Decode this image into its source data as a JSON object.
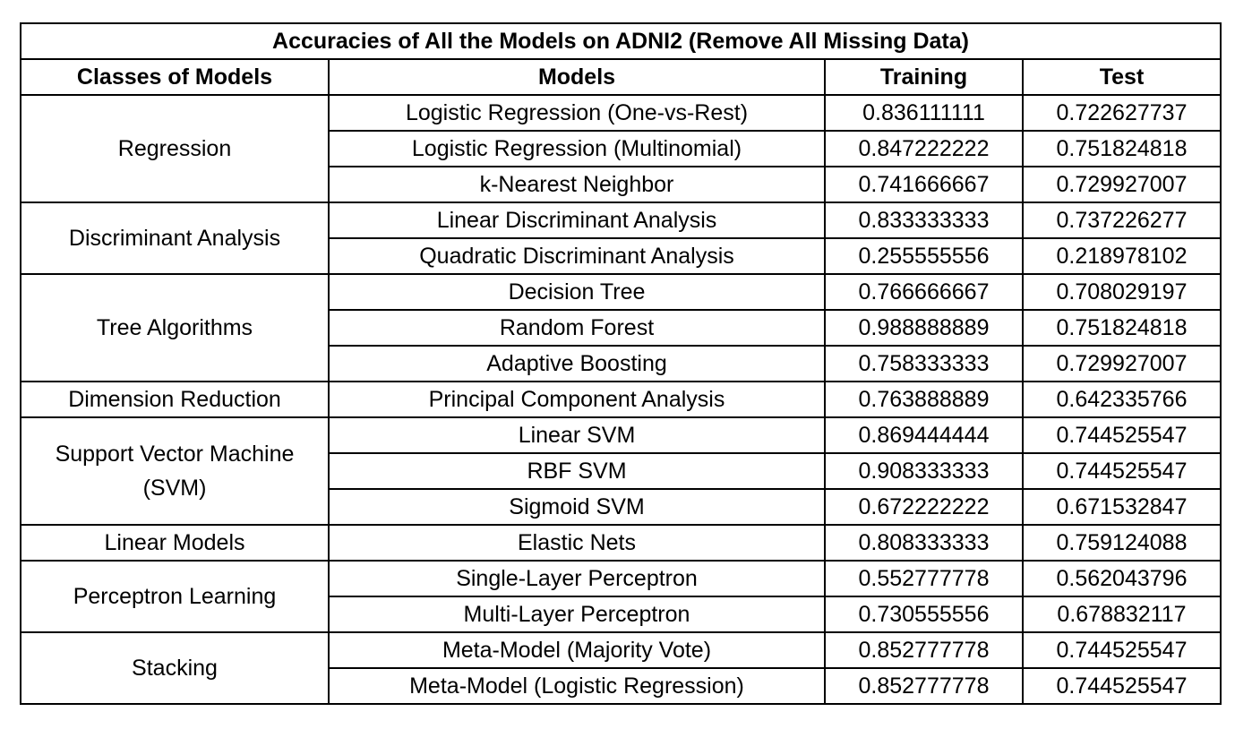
{
  "table": {
    "title": "Accuracies of All the Models on ADNI2 (Remove All Missing Data)",
    "headers": {
      "class": "Classes of Models",
      "model": "Models",
      "training": "Training",
      "test": "Test"
    },
    "groups": [
      {
        "class": "Regression",
        "rows": [
          {
            "model": "Logistic Regression (One-vs-Rest)",
            "training": "0.836111111",
            "test": "0.722627737"
          },
          {
            "model": "Logistic Regression (Multinomial)",
            "training": "0.847222222",
            "test": "0.751824818"
          },
          {
            "model": "k-Nearest Neighbor",
            "training": "0.741666667",
            "test": "0.729927007"
          }
        ]
      },
      {
        "class": "Discriminant Analysis",
        "rows": [
          {
            "model": "Linear Discriminant Analysis",
            "training": "0.833333333",
            "test": "0.737226277"
          },
          {
            "model": "Quadratic Discriminant Analysis",
            "training": "0.255555556",
            "test": "0.218978102"
          }
        ]
      },
      {
        "class": "Tree Algorithms",
        "rows": [
          {
            "model": "Decision Tree",
            "training": "0.766666667",
            "test": "0.708029197"
          },
          {
            "model": "Random Forest",
            "training": "0.988888889",
            "test": "0.751824818"
          },
          {
            "model": "Adaptive Boosting",
            "training": "0.758333333",
            "test": "0.729927007"
          }
        ]
      },
      {
        "class": "Dimension Reduction",
        "rows": [
          {
            "model": "Principal Component Analysis",
            "training": "0.763888889",
            "test": "0.642335766"
          }
        ]
      },
      {
        "class": "Support Vector Machine (SVM)",
        "rows": [
          {
            "model": "Linear SVM",
            "training": "0.869444444",
            "test": "0.744525547"
          },
          {
            "model": "RBF SVM",
            "training": "0.908333333",
            "test": "0.744525547"
          },
          {
            "model": "Sigmoid SVM",
            "training": "0.672222222",
            "test": "0.671532847"
          }
        ]
      },
      {
        "class": "Linear Models",
        "rows": [
          {
            "model": "Elastic Nets",
            "training": "0.808333333",
            "test": "0.759124088"
          }
        ]
      },
      {
        "class": "Perceptron Learning",
        "rows": [
          {
            "model": "Single-Layer Perceptron",
            "training": "0.552777778",
            "test": "0.562043796"
          },
          {
            "model": "Multi-Layer Perceptron",
            "training": "0.730555556",
            "test": "0.678832117"
          }
        ]
      },
      {
        "class": "Stacking",
        "rows": [
          {
            "model": "Meta-Model (Majority Vote)",
            "training": "0.852777778",
            "test": "0.744525547"
          },
          {
            "model": "Meta-Model (Logistic Regression)",
            "training": "0.852777778",
            "test": "0.744525547"
          }
        ]
      }
    ]
  }
}
